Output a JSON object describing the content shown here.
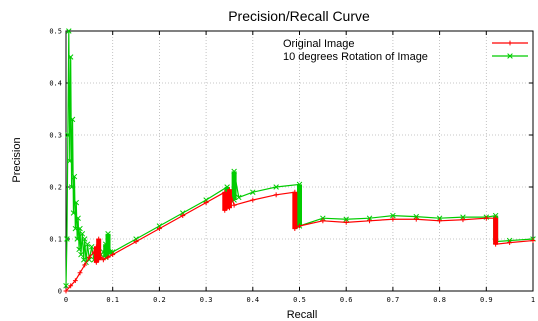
{
  "chart_data": {
    "type": "line",
    "title": "Precision/Recall Curve",
    "xlabel": "Recall",
    "ylabel": "Precision",
    "xlim": [
      0,
      1
    ],
    "ylim": [
      0,
      0.5
    ],
    "x_ticks": [
      0,
      0.1,
      0.2,
      0.3,
      0.4,
      0.5,
      0.6,
      0.7,
      0.8,
      0.9,
      1
    ],
    "x_tick_labels": [
      "0",
      "0.1",
      "0.2",
      "0.3",
      "0.4",
      "0.5",
      "0.6",
      "0.7",
      "0.8",
      "0.9",
      "1"
    ],
    "y_ticks": [
      0,
      0.1,
      0.2,
      0.3,
      0.4,
      0.5
    ],
    "y_tick_labels": [
      "0",
      "0.1",
      "0.2",
      "0.3",
      "0.4",
      "0.5"
    ],
    "grid": true,
    "legend_position": "top-right",
    "series": [
      {
        "name": "Original Image",
        "color": "#ff0000",
        "marker": "plus",
        "points": [
          [
            0.0,
            0.0
          ],
          [
            0.01,
            0.01
          ],
          [
            0.02,
            0.02
          ],
          [
            0.03,
            0.035
          ],
          [
            0.04,
            0.05
          ],
          [
            0.05,
            0.065
          ],
          [
            0.06,
            0.075
          ],
          [
            0.065,
            0.085
          ],
          [
            0.065,
            0.055
          ],
          [
            0.07,
            0.06
          ],
          [
            0.07,
            0.1
          ],
          [
            0.075,
            0.065
          ],
          [
            0.08,
            0.06
          ],
          [
            0.09,
            0.065
          ],
          [
            0.1,
            0.07
          ],
          [
            0.15,
            0.095
          ],
          [
            0.2,
            0.12
          ],
          [
            0.25,
            0.145
          ],
          [
            0.3,
            0.17
          ],
          [
            0.34,
            0.19
          ],
          [
            0.34,
            0.155
          ],
          [
            0.35,
            0.16
          ],
          [
            0.35,
            0.195
          ],
          [
            0.36,
            0.165
          ],
          [
            0.4,
            0.175
          ],
          [
            0.45,
            0.185
          ],
          [
            0.49,
            0.19
          ],
          [
            0.49,
            0.12
          ],
          [
            0.5,
            0.125
          ],
          [
            0.55,
            0.135
          ],
          [
            0.6,
            0.132
          ],
          [
            0.65,
            0.135
          ],
          [
            0.7,
            0.138
          ],
          [
            0.75,
            0.138
          ],
          [
            0.8,
            0.135
          ],
          [
            0.85,
            0.137
          ],
          [
            0.9,
            0.14
          ],
          [
            0.92,
            0.14
          ],
          [
            0.92,
            0.09
          ],
          [
            0.95,
            0.093
          ],
          [
            1.0,
            0.097
          ]
        ]
      },
      {
        "name": "10 degrees Rotation of Image",
        "color": "#00cc00",
        "marker": "cross",
        "points": [
          [
            0.0,
            0.01
          ],
          [
            0.002,
            0.1
          ],
          [
            0.004,
            0.3
          ],
          [
            0.006,
            0.5
          ],
          [
            0.008,
            0.25
          ],
          [
            0.01,
            0.45
          ],
          [
            0.012,
            0.2
          ],
          [
            0.014,
            0.33
          ],
          [
            0.016,
            0.15
          ],
          [
            0.018,
            0.22
          ],
          [
            0.02,
            0.12
          ],
          [
            0.022,
            0.17
          ],
          [
            0.024,
            0.1
          ],
          [
            0.026,
            0.14
          ],
          [
            0.028,
            0.08
          ],
          [
            0.03,
            0.12
          ],
          [
            0.032,
            0.07
          ],
          [
            0.035,
            0.11
          ],
          [
            0.038,
            0.06
          ],
          [
            0.04,
            0.1
          ],
          [
            0.043,
            0.055
          ],
          [
            0.046,
            0.09
          ],
          [
            0.05,
            0.06
          ],
          [
            0.055,
            0.085
          ],
          [
            0.06,
            0.06
          ],
          [
            0.065,
            0.075
          ],
          [
            0.07,
            0.065
          ],
          [
            0.075,
            0.07
          ],
          [
            0.08,
            0.075
          ],
          [
            0.085,
            0.09
          ],
          [
            0.085,
            0.065
          ],
          [
            0.09,
            0.07
          ],
          [
            0.09,
            0.11
          ],
          [
            0.095,
            0.075
          ],
          [
            0.1,
            0.075
          ],
          [
            0.15,
            0.1
          ],
          [
            0.2,
            0.125
          ],
          [
            0.25,
            0.15
          ],
          [
            0.3,
            0.175
          ],
          [
            0.345,
            0.2
          ],
          [
            0.345,
            0.17
          ],
          [
            0.36,
            0.175
          ],
          [
            0.36,
            0.23
          ],
          [
            0.37,
            0.18
          ],
          [
            0.4,
            0.19
          ],
          [
            0.45,
            0.2
          ],
          [
            0.5,
            0.205
          ],
          [
            0.5,
            0.125
          ],
          [
            0.55,
            0.14
          ],
          [
            0.6,
            0.138
          ],
          [
            0.65,
            0.14
          ],
          [
            0.7,
            0.145
          ],
          [
            0.75,
            0.143
          ],
          [
            0.8,
            0.14
          ],
          [
            0.85,
            0.142
          ],
          [
            0.9,
            0.142
          ],
          [
            0.92,
            0.145
          ],
          [
            0.92,
            0.095
          ],
          [
            0.95,
            0.097
          ],
          [
            1.0,
            0.1
          ]
        ]
      }
    ]
  }
}
